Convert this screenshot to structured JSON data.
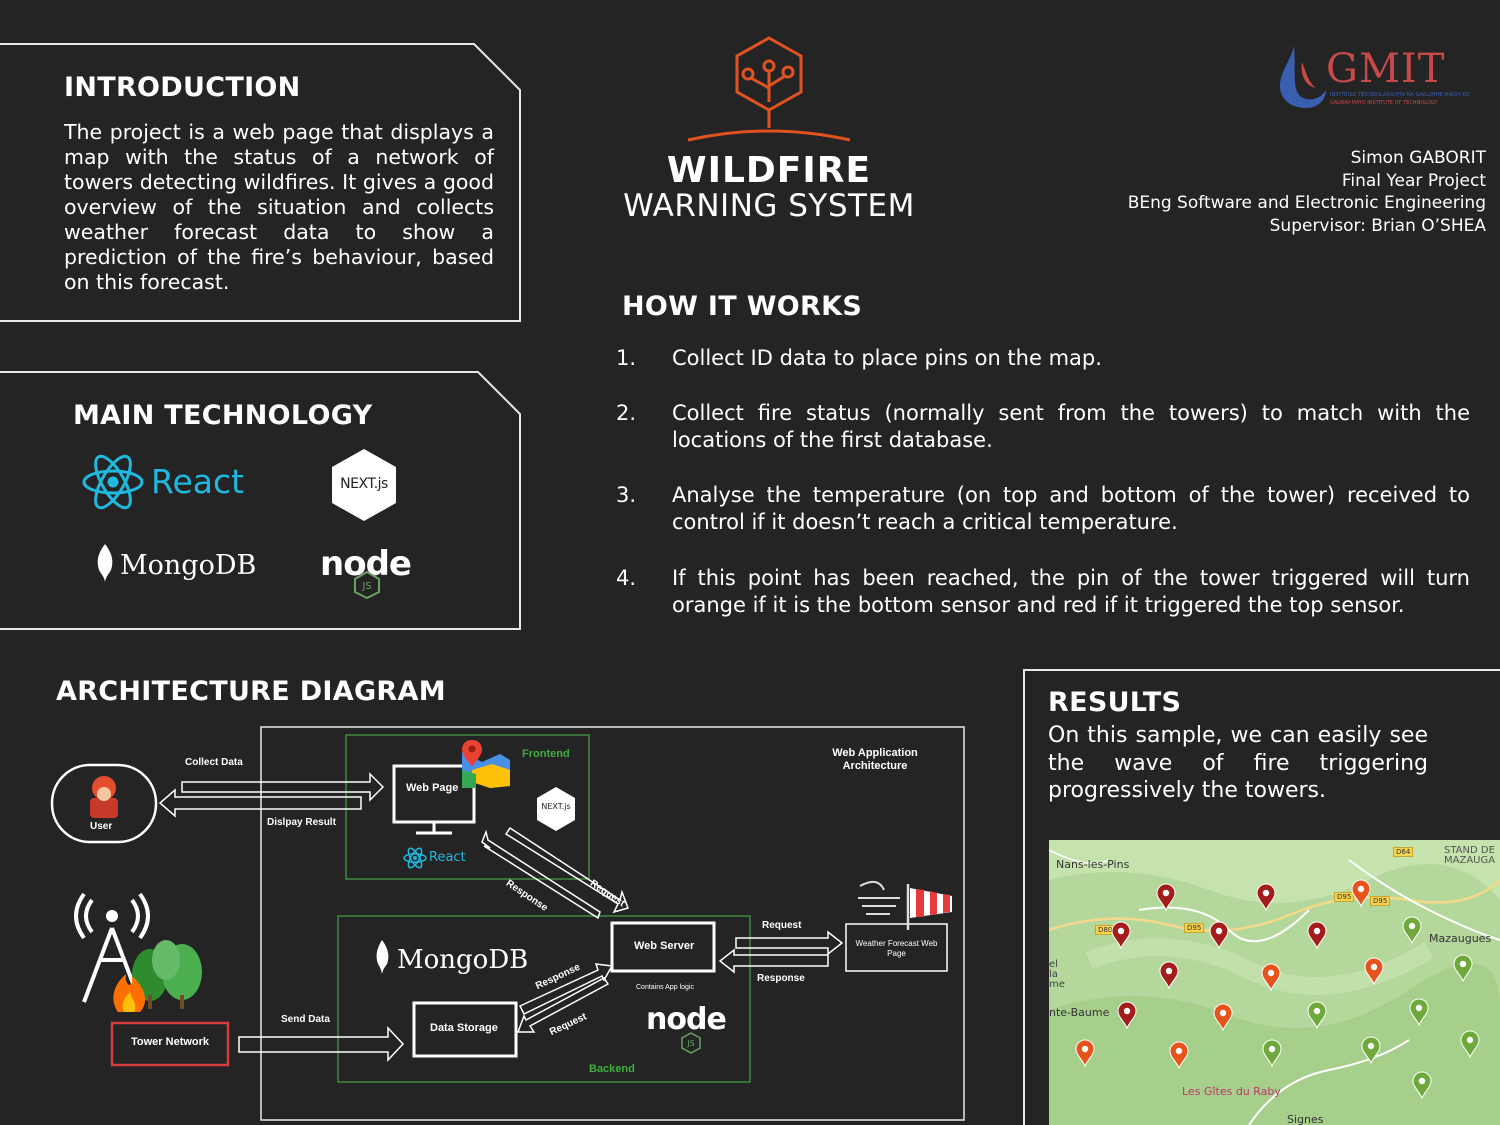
{
  "introduction": {
    "heading": "INTRODUCTION",
    "text": "The project is a web page that displays a map with the status of a network of towers detecting wildfires. It gives a good overview of the situation and collects weather forecast data to show a prediction of the fire’s behaviour, based on this forecast."
  },
  "main_technology": {
    "heading": "MAIN TECHNOLOGY",
    "react": "React",
    "next": "NEXT.js",
    "mongodb": "MongoDB",
    "node": "node"
  },
  "logo": {
    "title_line1": "WILDFIRE",
    "title_line2": "WARNING SYSTEM",
    "color": "#e0531f"
  },
  "gmit": {
    "name": "GMIT",
    "sub1": "INSTITIÚID TEICNEOLAÍOCHTA NA GAILLIMHE-MAIGH EO",
    "sub2": "GALWAY-MAYO INSTITUTE OF TECHNOLOGY"
  },
  "author": {
    "line1": "Simon GABORIT",
    "line2": "Final Year Project",
    "line3": "BEng Software and Electronic Engineering",
    "line4": "Supervisor: Brian O’SHEA"
  },
  "how_it_works": {
    "heading": "HOW IT WORKS",
    "steps": [
      {
        "num": "1.",
        "text": "Collect ID data to place pins on the map."
      },
      {
        "num": "2.",
        "text": "Collect fire status (normally sent from the towers) to match with the locations of the first database."
      },
      {
        "num": "3.",
        "text": "Analyse the temperature (on top and bottom of the tower) received to control if it doesn’t reach a critical temperature."
      },
      {
        "num": "4.",
        "text": "If this point has been reached, the pin of the tower triggered will turn orange if it is the bottom sensor and red if it triggered the top sensor."
      }
    ]
  },
  "architecture": {
    "heading": "ARCHITECTURE DIAGRAM",
    "web_app_label_1": "Web Application",
    "web_app_label_2": "Architecture",
    "frontend": "Frontend",
    "backend": "Backend",
    "web_page": "Web Page",
    "react": "React",
    "next": "NEXT.js",
    "user": "User",
    "collect_data": "Collect Data",
    "display_result": "Dislpay Result",
    "request": "Request",
    "response": "Response",
    "web_server": "Web Server",
    "contains_app_logic": "Contains App logic",
    "weather_line1": "Weather Forecast Web",
    "weather_line2": "Page",
    "mongodb": "MongoDB",
    "data_storage": "Data Storage",
    "tower_network": "Tower Network",
    "send_data": "Send Data",
    "node": "node"
  },
  "results": {
    "heading": "RESULTS",
    "text": "On this sample, we can easily see the wave of fire triggering progressively the towers."
  },
  "map": {
    "places": {
      "nans": "Nans-les-Pins",
      "stand": "STAND DE",
      "mazaug": "MAZAUGA",
      "mazaugues": "Mazaugues",
      "baume": "nte-Baume",
      "raby": "Les Gîtes du Raby",
      "signes": "Signes",
      "el": "el",
      "la": "la",
      "me": "me"
    },
    "roads": {
      "d64": "D64",
      "d95a": "D95",
      "d95b": "D95",
      "d80": "D80",
      "d95c": "D95"
    },
    "pin_colors": {
      "red": "#a31d1d",
      "orange": "#e6531b",
      "green": "#6fa83b"
    }
  }
}
